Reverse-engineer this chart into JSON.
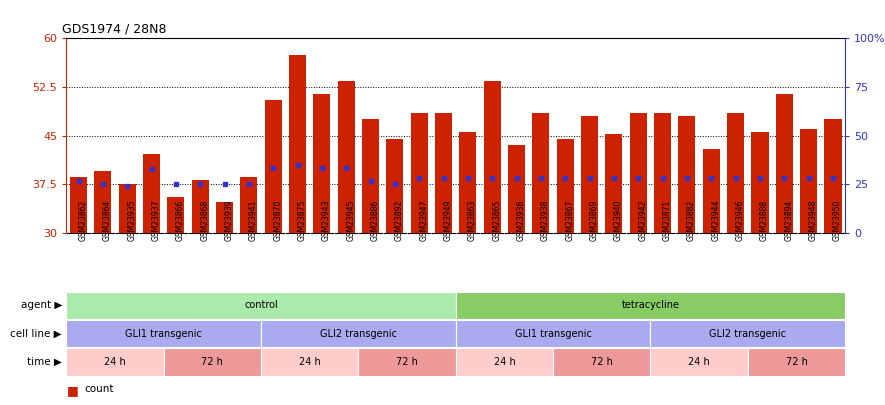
{
  "title": "GDS1974 / 28N8",
  "samples": [
    "GSM23862",
    "GSM23864",
    "GSM23935",
    "GSM23937",
    "GSM23866",
    "GSM23868",
    "GSM23939",
    "GSM23941",
    "GSM23870",
    "GSM23875",
    "GSM23943",
    "GSM23945",
    "GSM23886",
    "GSM23892",
    "GSM23947",
    "GSM23949",
    "GSM23863",
    "GSM23865",
    "GSM23936",
    "GSM23938",
    "GSM23867",
    "GSM23869",
    "GSM23940",
    "GSM23942",
    "GSM23871",
    "GSM23882",
    "GSM23944",
    "GSM23946",
    "GSM23888",
    "GSM23894",
    "GSM23948",
    "GSM23950"
  ],
  "bar_heights": [
    38.6,
    39.5,
    37.5,
    42.2,
    35.5,
    38.2,
    34.8,
    38.6,
    50.5,
    57.5,
    51.5,
    53.5,
    47.5,
    44.5,
    48.5,
    48.5,
    45.5,
    53.5,
    43.5,
    48.5,
    44.5,
    48.0,
    45.2,
    48.5,
    48.5,
    48.0,
    43.0,
    48.5,
    45.5,
    51.5,
    46.0,
    47.5
  ],
  "percentile_values": [
    38.0,
    37.5,
    37.3,
    39.8,
    37.5,
    37.5,
    37.5,
    37.5,
    40.0,
    40.5,
    40.0,
    40.0,
    38.0,
    37.5,
    38.5,
    38.5,
    38.5,
    38.5,
    38.5,
    38.5,
    38.5,
    38.5,
    38.5,
    38.5,
    38.5,
    38.5,
    38.5,
    38.5,
    38.5,
    38.5,
    38.5,
    38.5
  ],
  "bar_color": "#cc2200",
  "percentile_color": "#3333cc",
  "ymin": 30,
  "ymax": 60,
  "yticks": [
    30,
    37.5,
    45,
    52.5,
    60
  ],
  "ytick_labels": [
    "30",
    "37.5",
    "45",
    "52.5",
    "60"
  ],
  "right_yticks": [
    0,
    25,
    50,
    75,
    100
  ],
  "right_ytick_labels": [
    "0",
    "25",
    "50",
    "75",
    "100%"
  ],
  "gridlines": [
    37.5,
    45.0,
    52.5
  ],
  "agent_groups": [
    {
      "label": "control",
      "start": 0,
      "end": 16,
      "color": "#aaeaaa"
    },
    {
      "label": "tetracycline",
      "start": 16,
      "end": 32,
      "color": "#88cc66"
    }
  ],
  "cell_line_groups": [
    {
      "label": "GLI1 transgenic",
      "start": 0,
      "end": 8,
      "color": "#aaaaee"
    },
    {
      "label": "GLI2 transgenic",
      "start": 8,
      "end": 16,
      "color": "#aaaaee"
    },
    {
      "label": "GLI1 transgenic",
      "start": 16,
      "end": 24,
      "color": "#aaaaee"
    },
    {
      "label": "GLI2 transgenic",
      "start": 24,
      "end": 32,
      "color": "#aaaaee"
    }
  ],
  "time_groups": [
    {
      "label": "24 h",
      "start": 0,
      "end": 4,
      "color": "#ffcccc"
    },
    {
      "label": "72 h",
      "start": 4,
      "end": 8,
      "color": "#ee9999"
    },
    {
      "label": "24 h",
      "start": 8,
      "end": 12,
      "color": "#ffcccc"
    },
    {
      "label": "72 h",
      "start": 12,
      "end": 16,
      "color": "#ee9999"
    },
    {
      "label": "24 h",
      "start": 16,
      "end": 20,
      "color": "#ffcccc"
    },
    {
      "label": "72 h",
      "start": 20,
      "end": 24,
      "color": "#ee9999"
    },
    {
      "label": "24 h",
      "start": 24,
      "end": 28,
      "color": "#ffcccc"
    },
    {
      "label": "72 h",
      "start": 28,
      "end": 32,
      "color": "#ee9999"
    }
  ]
}
